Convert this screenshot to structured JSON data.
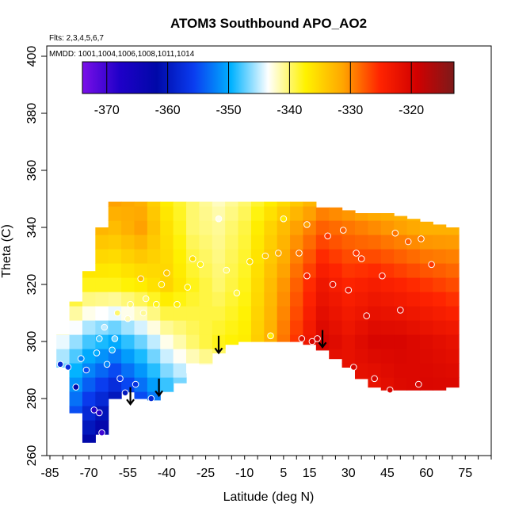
{
  "chart_data": {
    "type": "heatmap",
    "title": "ATOM3 Southbound APO_AO2",
    "flights_note": "Flts: 2,3,4,5,6,7",
    "dates_note": "MMDD: 1001,1004,1006,1008,1011,1014",
    "xlabel": "Latitude (deg N)",
    "ylabel": "Theta (C)",
    "xlim": [
      -85,
      85
    ],
    "ylim": [
      260,
      400
    ],
    "x_ticks": [
      -85,
      -70,
      -55,
      -40,
      -25,
      -10,
      5,
      15,
      30,
      45,
      60,
      75
    ],
    "x_minor_step": 5,
    "y_ticks": [
      260,
      280,
      300,
      320,
      340,
      360,
      380,
      400
    ],
    "colorbar": {
      "range": [
        -374,
        -313
      ],
      "ticks": [
        -370,
        -360,
        -350,
        -340,
        -330,
        -320
      ],
      "palette": [
        "#7b0fe8",
        "#1f00c8",
        "#0008a8",
        "#0a3df0",
        "#00b2ff",
        "#ffffff",
        "#fff200",
        "#ffa700",
        "#ff2400",
        "#d10000",
        "#7d1a1a"
      ]
    },
    "field_summary": "APO values near -368 in the far southern lower troposphere, near -345 in the southern mid latitudes and roughly -322 to -318 in the northern lower troposphere",
    "field_grid": {
      "lat": [
        -80,
        -75,
        -70,
        -65,
        -60,
        -55,
        -50,
        -45,
        -40,
        -35,
        -30,
        -25,
        -20,
        -15,
        -10,
        -5,
        0,
        5,
        10,
        15,
        20,
        25,
        30,
        35,
        40,
        45,
        50,
        55,
        60,
        65,
        70
      ],
      "theta": [
        265,
        270,
        275,
        280,
        285,
        290,
        295,
        300,
        305,
        310,
        315,
        320,
        325,
        330,
        335,
        340,
        345,
        350
      ],
      "lat_knots": [
        -80,
        -70,
        -60,
        -50,
        -40,
        -30,
        -20,
        -10,
        0,
        10,
        20,
        30,
        40,
        50,
        60,
        70
      ],
      "theta_knots": [
        265,
        280,
        300,
        320,
        340,
        350
      ],
      "values_at_knots": [
        [
          -355,
          -362,
          -368,
          -362,
          -356,
          -352,
          -350,
          -348,
          -346,
          -344,
          -342,
          -340,
          -338,
          -336,
          -334,
          -332
        ],
        [
          -350,
          -356,
          -360,
          -355,
          -350,
          -347,
          -345,
          -343,
          -340,
          -335,
          -325,
          -322,
          -323,
          -321,
          -320,
          -320
        ],
        [
          -344,
          -348,
          -350,
          -347,
          -343,
          -340,
          -338,
          -337,
          -332,
          -326,
          -320,
          -322,
          -320,
          -320,
          -321,
          -322
        ],
        [
          -335,
          -338,
          -338,
          -337,
          -335,
          -338,
          -340,
          -338,
          -333,
          -328,
          -323,
          -325,
          -324,
          -325,
          -326,
          -327
        ],
        [
          -330,
          -332,
          -333,
          -331,
          -336,
          -340,
          -341,
          -339,
          -335,
          -331,
          -328,
          -329,
          -330,
          -331,
          -332,
          -332
        ],
        [
          -329,
          -330,
          -331,
          -332,
          -337,
          -340,
          -342,
          -340,
          -337,
          -334,
          -331,
          -332,
          -333,
          -333,
          -334,
          -334
        ]
      ]
    },
    "domain_bounds": {
      "lat": [
        -81,
        -77,
        -74,
        -71,
        -68,
        -66,
        -64,
        -62,
        -60,
        -57,
        -54,
        -50,
        -46,
        -42,
        -38,
        -34,
        -30,
        -25,
        -20,
        -15,
        -10,
        -5,
        0,
        5,
        10,
        15,
        20,
        25,
        30,
        35,
        40,
        45,
        50,
        55,
        60,
        65,
        70
      ],
      "theta_bottom": [
        293,
        285,
        270,
        266,
        262,
        267,
        268,
        276,
        280,
        283,
        282,
        280,
        279,
        281,
        284,
        286,
        289,
        292,
        296,
        299,
        300,
        300,
        300,
        300,
        300,
        299,
        297,
        294,
        291,
        287,
        284,
        283,
        283,
        283,
        283,
        283,
        284
      ],
      "theta_top": [
        300,
        310,
        316,
        322,
        330,
        338,
        342,
        346,
        349,
        349,
        349,
        349,
        349,
        349,
        349,
        349,
        349,
        349,
        349,
        349,
        349,
        349,
        349,
        349,
        349,
        349,
        347,
        347,
        346,
        345,
        345,
        345,
        344,
        343,
        342,
        341,
        340
      ]
    },
    "observations": [
      {
        "lat": -81,
        "theta": 292,
        "value": -358
      },
      {
        "lat": -78,
        "theta": 291,
        "value": -357
      },
      {
        "lat": -75,
        "theta": 284,
        "value": -362
      },
      {
        "lat": -73,
        "theta": 294,
        "value": -352
      },
      {
        "lat": -71,
        "theta": 290,
        "value": -355
      },
      {
        "lat": -68,
        "theta": 276,
        "value": -368
      },
      {
        "lat": -66,
        "theta": 275,
        "value": -368
      },
      {
        "lat": -65,
        "theta": 268,
        "value": -370
      },
      {
        "lat": -67,
        "theta": 296,
        "value": -350
      },
      {
        "lat": -66,
        "theta": 301,
        "value": -348
      },
      {
        "lat": -64,
        "theta": 305,
        "value": -345
      },
      {
        "lat": -63,
        "theta": 292,
        "value": -352
      },
      {
        "lat": -61,
        "theta": 297,
        "value": -349
      },
      {
        "lat": -60,
        "theta": 301,
        "value": -347
      },
      {
        "lat": -59,
        "theta": 310,
        "value": -340
      },
      {
        "lat": -58,
        "theta": 287,
        "value": -356
      },
      {
        "lat": -56,
        "theta": 282,
        "value": -360
      },
      {
        "lat": -55,
        "theta": 308,
        "value": -342
      },
      {
        "lat": -54,
        "theta": 313,
        "value": -340
      },
      {
        "lat": -52,
        "theta": 285,
        "value": -357
      },
      {
        "lat": -50,
        "theta": 322,
        "value": -333
      },
      {
        "lat": -49,
        "theta": 310,
        "value": -341
      },
      {
        "lat": -48,
        "theta": 315,
        "value": -340
      },
      {
        "lat": -46,
        "theta": 280,
        "value": -358
      },
      {
        "lat": -44,
        "theta": 313,
        "value": -338
      },
      {
        "lat": -42,
        "theta": 320,
        "value": -336
      },
      {
        "lat": -40,
        "theta": 324,
        "value": -334
      },
      {
        "lat": -36,
        "theta": 313,
        "value": -337
      },
      {
        "lat": -32,
        "theta": 319,
        "value": -337
      },
      {
        "lat": -30,
        "theta": 329,
        "value": -336
      },
      {
        "lat": -27,
        "theta": 327,
        "value": -338
      },
      {
        "lat": -20,
        "theta": 343,
        "value": -343
      },
      {
        "lat": -17,
        "theta": 325,
        "value": -340
      },
      {
        "lat": -13,
        "theta": 317,
        "value": -339
      },
      {
        "lat": -8,
        "theta": 328,
        "value": -336
      },
      {
        "lat": -2,
        "theta": 330,
        "value": -334
      },
      {
        "lat": 0,
        "theta": 302,
        "value": -337
      },
      {
        "lat": 3,
        "theta": 331,
        "value": -332
      },
      {
        "lat": 5,
        "theta": 343,
        "value": -337
      },
      {
        "lat": 11,
        "theta": 331,
        "value": -329
      },
      {
        "lat": 12,
        "theta": 301,
        "value": -321
      },
      {
        "lat": 14,
        "theta": 341,
        "value": -331
      },
      {
        "lat": 14,
        "theta": 323,
        "value": -324
      },
      {
        "lat": 16,
        "theta": 300,
        "value": -320
      },
      {
        "lat": 18,
        "theta": 301,
        "value": -319
      },
      {
        "lat": 22,
        "theta": 337,
        "value": -326
      },
      {
        "lat": 24,
        "theta": 320,
        "value": -322
      },
      {
        "lat": 28,
        "theta": 339,
        "value": -328
      },
      {
        "lat": 30,
        "theta": 318,
        "value": -322
      },
      {
        "lat": 32,
        "theta": 291,
        "value": -320
      },
      {
        "lat": 33,
        "theta": 331,
        "value": -326
      },
      {
        "lat": 35,
        "theta": 329,
        "value": -326
      },
      {
        "lat": 37,
        "theta": 309,
        "value": -321
      },
      {
        "lat": 40,
        "theta": 287,
        "value": -320
      },
      {
        "lat": 43,
        "theta": 323,
        "value": -324
      },
      {
        "lat": 46,
        "theta": 283,
        "value": -320
      },
      {
        "lat": 48,
        "theta": 338,
        "value": -329
      },
      {
        "lat": 50,
        "theta": 311,
        "value": -321
      },
      {
        "lat": 53,
        "theta": 335,
        "value": -328
      },
      {
        "lat": 57,
        "theta": 285,
        "value": -320
      },
      {
        "lat": 58,
        "theta": 336,
        "value": -329
      },
      {
        "lat": 62,
        "theta": 327,
        "value": -326
      }
    ],
    "arrows": [
      {
        "lat": -54,
        "theta_start": 284,
        "theta_end": 278
      },
      {
        "lat": -43,
        "theta_start": 287,
        "theta_end": 281
      },
      {
        "lat": -20,
        "theta_start": 302,
        "theta_end": 296
      },
      {
        "lat": 20,
        "theta_start": 304,
        "theta_end": 298
      }
    ]
  }
}
